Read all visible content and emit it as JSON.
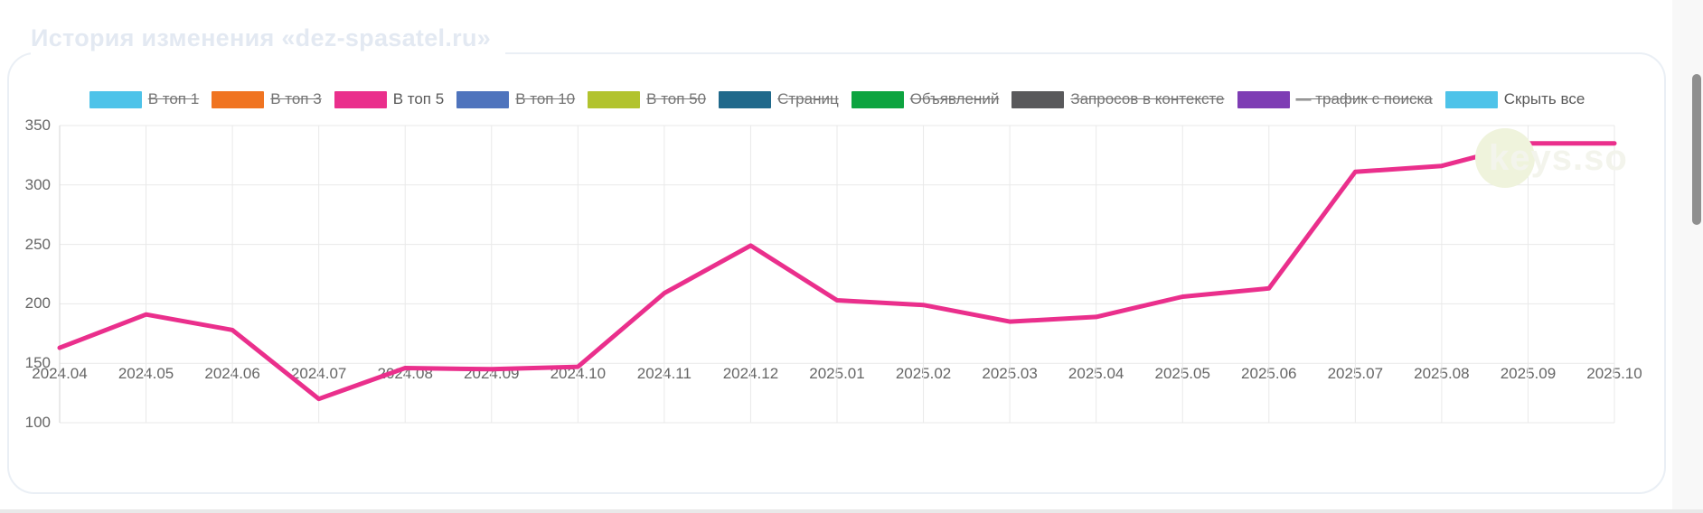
{
  "page": {
    "title": "История изменения «dez-spasatel.ru»"
  },
  "legend": {
    "items": [
      {
        "label": "В топ 1",
        "color": "#4ec3e9",
        "struck": true
      },
      {
        "label": "В топ 3",
        "color": "#f07421",
        "struck": true
      },
      {
        "label": "В топ 5",
        "color": "#ea2f8c",
        "struck": false
      },
      {
        "label": "В топ 10",
        "color": "#4f74bd",
        "struck": true
      },
      {
        "label": "В топ 50",
        "color": "#b2c32e",
        "struck": true
      },
      {
        "label": "Страниц",
        "color": "#20698b",
        "struck": true
      },
      {
        "label": "Объявлений",
        "color": "#0da440",
        "struck": true
      },
      {
        "label": "Запросов в контексте",
        "color": "#59595b",
        "struck": true
      },
      {
        "label": "— трафик с поиска",
        "color": "#7e3db4",
        "struck": true
      },
      {
        "label": "Скрыть все",
        "color": "#4ec3e9",
        "struck": false
      }
    ]
  },
  "watermark": {
    "text": "keys.so"
  },
  "chart_data": {
    "type": "line",
    "title": "История изменения «dez-spasatel.ru»",
    "categories": [
      "2024.04",
      "2024.05",
      "2024.06",
      "2024.07",
      "2024.08",
      "2024.09",
      "2024.10",
      "2024.11",
      "2024.12",
      "2025.01",
      "2025.02",
      "2025.03",
      "2025.04",
      "2025.05",
      "2025.06",
      "2025.07",
      "2025.08",
      "2025.09",
      "2025.10"
    ],
    "yticks": [
      350,
      300,
      250,
      200,
      150,
      100
    ],
    "ylim": [
      100,
      350
    ],
    "grid": true,
    "legend_position": "top-center",
    "series": [
      {
        "name": "В топ 5",
        "color": "#ea2f8c",
        "values": [
          163,
          191,
          178,
          120,
          146,
          145,
          147,
          209,
          249,
          203,
          199,
          185,
          189,
          206,
          213,
          311,
          316,
          335,
          335
        ]
      }
    ],
    "colors": {
      "grid": "#e9e9e9",
      "axis": "#d6d6d6",
      "tick_text": "#666666"
    }
  }
}
